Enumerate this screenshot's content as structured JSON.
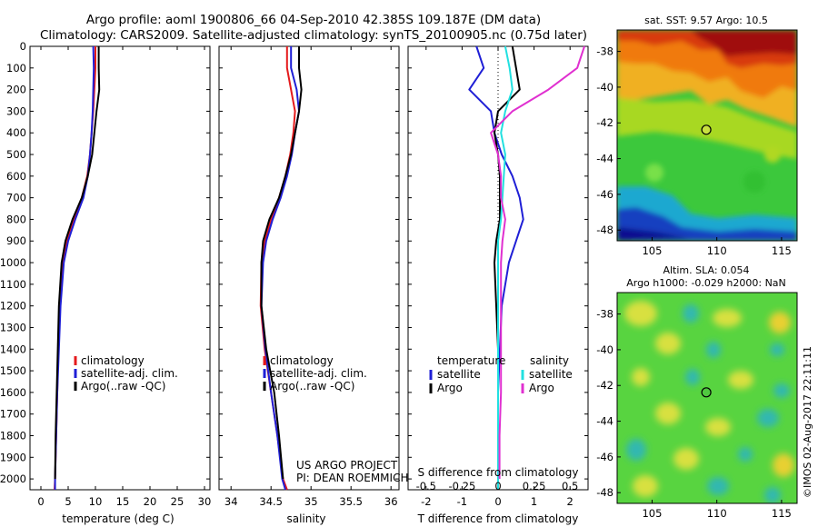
{
  "title_line1": "Argo profile: aoml 1900806_66 04-Sep-2010 42.385S 109.187E (DM data)",
  "title_line2": "Climatology: CARS2009. Satellite-adjusted climatology: synTS_20100905.nc (0.75d later)",
  "sst_title": "sat. SST: 9.57 Argo: 10.5",
  "sla_title1": "Altim. SLA: 0.054",
  "sla_title2": "Argo h1000: -0.029 h2000: NaN",
  "side_label": "©IMOS 02-Aug-2017 22:11:11",
  "credit1": "US ARGO PROJECT",
  "credit2": "PI: DEAN ROEMMICH",
  "colors": {
    "climatology": "#e41a1c",
    "satellite": "#1f1fd6",
    "argo": "#000000",
    "sat_salinity": "#22e0e0",
    "argo_salinity": "#e030d0"
  },
  "chart_data": [
    {
      "type": "line",
      "xlabel": "temperature (deg C)",
      "xlim": [
        -2,
        31
      ],
      "xticks": [
        "0",
        "5",
        "10",
        "15",
        "20",
        "25",
        "30"
      ],
      "ylim": [
        0,
        2050
      ],
      "yticks": [
        "0",
        "100",
        "200",
        "300",
        "400",
        "500",
        "600",
        "700",
        "800",
        "900",
        "1000",
        "1100",
        "1200",
        "1300",
        "1400",
        "1500",
        "1600",
        "1700",
        "1800",
        "1900",
        "2000"
      ],
      "legend": [
        "climatology",
        "satellite-adj. clim.",
        "Argo(..raw -QC)"
      ],
      "series": [
        {
          "name": "climatology",
          "color": "#e41a1c",
          "x": [
            10.0,
            10.0,
            9.8,
            9.6,
            9.3,
            9.0,
            8.5,
            7.5,
            6.0,
            4.8,
            4.0,
            3.5,
            3.2,
            3.0,
            2.8,
            2.6,
            2.5
          ],
          "y": [
            0,
            100,
            200,
            300,
            400,
            500,
            600,
            700,
            800,
            900,
            1000,
            1200,
            1400,
            1600,
            1800,
            2000,
            2050
          ]
        },
        {
          "name": "satellite-adj. clim.",
          "color": "#1f1fd6",
          "x": [
            9.6,
            9.7,
            9.6,
            9.5,
            9.3,
            9.0,
            8.6,
            7.8,
            6.3,
            5.0,
            4.2,
            3.6,
            3.3,
            3.0,
            2.8,
            2.6,
            2.6
          ],
          "y": [
            0,
            100,
            200,
            300,
            400,
            500,
            600,
            700,
            800,
            900,
            1000,
            1200,
            1400,
            1600,
            1800,
            2000,
            2050
          ]
        },
        {
          "name": "Argo(..raw -QC)",
          "color": "#000000",
          "x": [
            10.6,
            10.6,
            10.7,
            10.2,
            9.8,
            9.4,
            8.6,
            7.5,
            5.8,
            4.5,
            3.8,
            3.3,
            3.1,
            2.9,
            2.7,
            2.6
          ],
          "y": [
            0,
            100,
            200,
            300,
            400,
            500,
            600,
            700,
            800,
            900,
            1000,
            1200,
            1400,
            1600,
            1800,
            2000
          ]
        }
      ]
    },
    {
      "type": "line",
      "xlabel": "salinity",
      "xlim": [
        33.85,
        36.1
      ],
      "xticks": [
        "34",
        "34.5",
        "35",
        "35.5",
        "36"
      ],
      "ylim": [
        0,
        2050
      ],
      "legend": [
        "climatology",
        "satellite-adj. clim.",
        "Argo(..raw -QC)"
      ],
      "series": [
        {
          "name": "climatology",
          "color": "#e41a1c",
          "x": [
            34.7,
            34.7,
            34.75,
            34.8,
            34.78,
            34.74,
            34.68,
            34.6,
            34.5,
            34.42,
            34.38,
            34.37,
            34.42,
            34.5,
            34.58,
            34.65,
            34.7
          ],
          "y": [
            0,
            100,
            200,
            300,
            400,
            500,
            600,
            700,
            800,
            900,
            1000,
            1200,
            1400,
            1600,
            1800,
            2000,
            2050
          ]
        },
        {
          "name": "satellite-adj. clim.",
          "color": "#1f1fd6",
          "x": [
            34.75,
            34.75,
            34.82,
            34.85,
            34.8,
            34.76,
            34.7,
            34.62,
            34.52,
            34.44,
            34.4,
            34.38,
            34.43,
            34.5,
            34.58,
            34.64,
            34.68
          ],
          "y": [
            0,
            100,
            200,
            300,
            400,
            500,
            600,
            700,
            800,
            900,
            1000,
            1200,
            1400,
            1600,
            1800,
            2000,
            2050
          ]
        },
        {
          "name": "Argo(..raw -QC)",
          "color": "#000000",
          "x": [
            34.85,
            34.85,
            34.88,
            34.85,
            34.8,
            34.75,
            34.68,
            34.6,
            34.48,
            34.4,
            34.38,
            34.38,
            34.44,
            34.54,
            34.6,
            34.65
          ],
          "y": [
            0,
            100,
            200,
            300,
            400,
            500,
            600,
            700,
            800,
            900,
            1000,
            1200,
            1400,
            1600,
            1800,
            2000
          ]
        }
      ]
    },
    {
      "type": "line",
      "xlabel": "T difference from climatology",
      "xlabel_top": "S difference from climatology",
      "xlim": [
        -2.5,
        2.5
      ],
      "xticks": [
        "-2",
        "-1",
        "0",
        "1",
        "2"
      ],
      "s_ticks": [
        "-0.5",
        "-0.25",
        "0",
        "0.25",
        "0.5"
      ],
      "ylim": [
        0,
        2050
      ],
      "legend_titles": [
        "temperature",
        "salinity"
      ],
      "legend": [
        "satellite",
        "Argo",
        "satellite",
        "Argo"
      ],
      "series": [
        {
          "name": "satellite",
          "group": "temperature",
          "color": "#1f1fd6",
          "x": [
            -0.6,
            -0.4,
            -0.8,
            -0.2,
            -0.1,
            0.1,
            0.4,
            0.6,
            0.7,
            0.5,
            0.3,
            0.1,
            0.05,
            0,
            0,
            0,
            0
          ],
          "y": [
            0,
            100,
            200,
            300,
            400,
            500,
            600,
            700,
            800,
            900,
            1000,
            1200,
            1400,
            1600,
            1800,
            2000,
            2050
          ]
        },
        {
          "name": "Argo",
          "group": "temperature",
          "color": "#000000",
          "x": [
            0.4,
            0.5,
            0.6,
            0,
            -0.1,
            0,
            0.05,
            0.05,
            0.05,
            -0.05,
            -0.1,
            -0.05,
            0,
            0,
            0,
            0
          ],
          "y": [
            0,
            100,
            200,
            300,
            400,
            500,
            600,
            700,
            800,
            900,
            1000,
            1200,
            1400,
            1600,
            1800,
            2000
          ]
        },
        {
          "name": "satellite",
          "group": "salinity",
          "color": "#22e0e0",
          "x": [
            0.05,
            0.08,
            0.1,
            0.05,
            0.02,
            0.05,
            0.04,
            0.03,
            0.02,
            0,
            0,
            0,
            0,
            0,
            0,
            0,
            0
          ],
          "y": [
            0,
            100,
            200,
            300,
            400,
            500,
            600,
            700,
            800,
            900,
            1000,
            1200,
            1400,
            1600,
            1800,
            2000,
            2050
          ]
        },
        {
          "name": "Argo",
          "group": "salinity",
          "color": "#e030d0",
          "x": [
            0.6,
            0.55,
            0.35,
            0.1,
            -0.05,
            0,
            0.02,
            0.02,
            0.05,
            0.03,
            0.02,
            0.02,
            0.02,
            0.02,
            0.01,
            0.01
          ],
          "y": [
            0,
            100,
            200,
            300,
            400,
            500,
            600,
            700,
            800,
            900,
            1000,
            1200,
            1400,
            1600,
            1800,
            2000
          ]
        }
      ]
    },
    {
      "type": "heatmap",
      "title": "sat. SST: 9.57 Argo: 10.5",
      "xticks": [
        "105",
        "110",
        "115"
      ],
      "yticks": [
        "-38",
        "-40",
        "-42",
        "-44",
        "-46",
        "-48"
      ],
      "xlim": [
        102.3,
        116.2
      ],
      "ylim": [
        -48.6,
        -36.8
      ],
      "marker": {
        "lon": 109.187,
        "lat": -42.385
      }
    },
    {
      "type": "heatmap",
      "title": "Altim. SLA: 0.054",
      "xticks": [
        "105",
        "110",
        "115"
      ],
      "yticks": [
        "-38",
        "-40",
        "-42",
        "-44",
        "-46",
        "-48"
      ],
      "xlim": [
        102.3,
        116.2
      ],
      "ylim": [
        -48.6,
        -36.8
      ],
      "marker": {
        "lon": 109.187,
        "lat": -42.385
      }
    }
  ]
}
